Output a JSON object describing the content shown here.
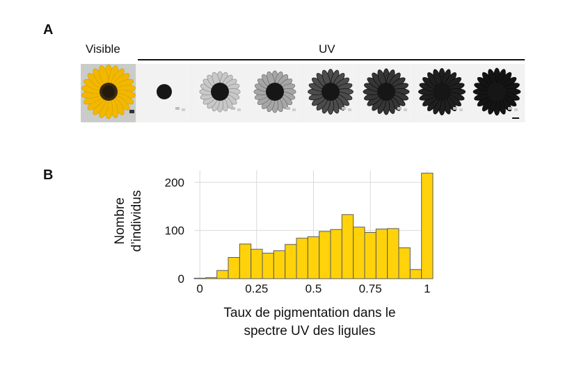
{
  "panels": {
    "a_label": "A",
    "b_label": "B"
  },
  "photos": {
    "visible_label": "Visible",
    "uv_label": "UV",
    "flowers": [
      {
        "name": "visible",
        "darkness": 0.0
      },
      {
        "name": "uv-1",
        "darkness": 0.05
      },
      {
        "name": "uv-2",
        "darkness": 0.2
      },
      {
        "name": "uv-3",
        "darkness": 0.35
      },
      {
        "name": "uv-4",
        "darkness": 0.75
      },
      {
        "name": "uv-5",
        "darkness": 0.85
      },
      {
        "name": "uv-6",
        "darkness": 0.95
      },
      {
        "name": "uv-7",
        "darkness": 1.0
      }
    ]
  },
  "chart_data": {
    "type": "bar",
    "title": "",
    "xlabel_line1": "Taux de pigmentation dans le",
    "xlabel_line2": "spectre UV des ligules",
    "ylabel_line1": "Nombre",
    "ylabel_line2": "d’individus",
    "xlim": [
      -0.025,
      1.025
    ],
    "ylim": [
      0,
      225
    ],
    "x_ticks": [
      0,
      0.25,
      0.5,
      0.75,
      1
    ],
    "x_tick_labels": [
      "0",
      "0.25",
      "0.5",
      "0.75",
      "1"
    ],
    "y_ticks": [
      0,
      100,
      200
    ],
    "y_tick_labels": [
      "0",
      "100",
      "200"
    ],
    "bin_width": 0.05,
    "bin_starts": [
      -0.025,
      0.025,
      0.075,
      0.125,
      0.175,
      0.225,
      0.275,
      0.325,
      0.375,
      0.425,
      0.475,
      0.525,
      0.575,
      0.625,
      0.675,
      0.725,
      0.775,
      0.825,
      0.875,
      0.925,
      0.975
    ],
    "values": [
      1,
      2,
      17,
      44,
      72,
      61,
      53,
      58,
      71,
      84,
      87,
      98,
      102,
      133,
      107,
      96,
      103,
      104,
      64,
      19,
      219
    ],
    "grid": true,
    "bar_color": "#ffd20a",
    "bar_edge": "#5a5a5a",
    "panel_bg": "#ffffff",
    "grid_color": "#d9d9d9"
  }
}
